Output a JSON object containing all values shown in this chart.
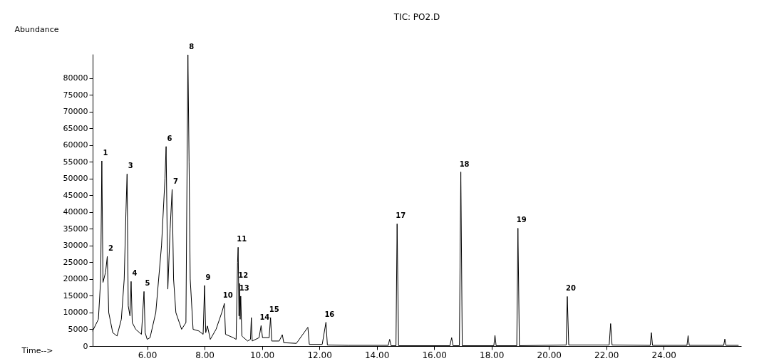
{
  "chart_data": {
    "type": "line",
    "title": "TIC: PO2.D",
    "xlabel": "Time-->",
    "ylabel": "Abundance",
    "xlim": [
      4.1,
      26.7
    ],
    "ylim": [
      0,
      87200
    ],
    "xticks": [
      {
        "value": 6,
        "label": "6.00"
      },
      {
        "value": 8,
        "label": "8.00"
      },
      {
        "value": 10,
        "label": "10.00"
      },
      {
        "value": 12,
        "label": "12.00"
      },
      {
        "value": 14,
        "label": "14.00"
      },
      {
        "value": 16,
        "label": "16.00"
      },
      {
        "value": 18,
        "label": "18.00"
      },
      {
        "value": 20,
        "label": "20.00"
      },
      {
        "value": 22,
        "label": "22.00"
      },
      {
        "value": 24,
        "label": "24.00"
      }
    ],
    "yticks": [
      0,
      5000,
      10000,
      15000,
      20000,
      25000,
      30000,
      35000,
      40000,
      45000,
      50000,
      55000,
      60000,
      65000,
      70000,
      75000,
      80000
    ],
    "grid": false,
    "marker": "none",
    "line_style": "solid",
    "series": [
      {
        "color": "#000000",
        "x": [
          4.1,
          4.3,
          4.38,
          4.42,
          4.46,
          4.55,
          4.61,
          4.66,
          4.8,
          4.95,
          5.1,
          5.2,
          5.26,
          5.3,
          5.34,
          5.4,
          5.44,
          5.48,
          5.6,
          5.8,
          5.89,
          5.93,
          6.0,
          6.1,
          6.3,
          6.5,
          6.62,
          6.66,
          6.72,
          6.8,
          6.87,
          6.92,
          7.0,
          7.2,
          7.35,
          7.42,
          7.46,
          7.5,
          7.6,
          7.8,
          7.95,
          8.0,
          8.04,
          8.1,
          8.2,
          8.4,
          8.6,
          8.69,
          8.73,
          9.0,
          9.1,
          9.15,
          9.17,
          9.2,
          9.22,
          9.24,
          9.26,
          9.3,
          9.5,
          9.6,
          9.63,
          9.66,
          9.9,
          9.97,
          10.02,
          10.25,
          10.3,
          10.34,
          10.6,
          10.71,
          10.76,
          11.2,
          11.6,
          11.65,
          12.1,
          12.23,
          12.28,
          13.0,
          14.4,
          14.45,
          14.5,
          14.67,
          14.71,
          14.76,
          16.55,
          16.61,
          16.66,
          16.88,
          16.93,
          16.98,
          18.08,
          18.12,
          18.16,
          18.88,
          18.92,
          18.97,
          20.6,
          20.64,
          20.69,
          22.1,
          22.15,
          22.2,
          23.53,
          23.57,
          23.61,
          24.81,
          24.85,
          24.89,
          26.09,
          26.13,
          26.17,
          26.6
        ],
        "values": [
          4500,
          8000,
          20000,
          55300,
          19000,
          22000,
          26800,
          10000,
          4000,
          3000,
          8000,
          20000,
          40000,
          51400,
          12000,
          9000,
          19300,
          7000,
          5000,
          3500,
          16300,
          4000,
          2000,
          2500,
          10000,
          30000,
          50000,
          59600,
          17000,
          35000,
          46800,
          20000,
          10000,
          5000,
          7000,
          87000,
          55000,
          20000,
          5000,
          4500,
          3500,
          18100,
          4000,
          6000,
          2000,
          5000,
          10000,
          12700,
          3500,
          2500,
          2000,
          25000,
          29500,
          9000,
          18700,
          8000,
          14900,
          3000,
          1500,
          2000,
          8500,
          1500,
          2500,
          6100,
          2500,
          2500,
          8500,
          1500,
          1500,
          3400,
          1000,
          800,
          5600,
          500,
          500,
          7100,
          300,
          200,
          200,
          2000,
          100,
          100,
          36500,
          100,
          100,
          2500,
          100,
          100,
          52000,
          100,
          100,
          3200,
          100,
          100,
          35200,
          100,
          300,
          14800,
          300,
          300,
          6700,
          300,
          200,
          4000,
          200,
          200,
          3100,
          200,
          200,
          2100,
          200,
          200
        ]
      }
    ],
    "annotations": [
      {
        "text": "1",
        "x": 4.42,
        "y": 55300
      },
      {
        "text": "2",
        "x": 4.61,
        "y": 26800
      },
      {
        "text": "3",
        "x": 5.3,
        "y": 51400
      },
      {
        "text": "4",
        "x": 5.44,
        "y": 19300
      },
      {
        "text": "5",
        "x": 5.89,
        "y": 16300
      },
      {
        "text": "6",
        "x": 6.66,
        "y": 59600
      },
      {
        "text": "7",
        "x": 6.87,
        "y": 46800
      },
      {
        "text": "8",
        "x": 7.42,
        "y": 87000
      },
      {
        "text": "9",
        "x": 8.0,
        "y": 18100
      },
      {
        "text": "10",
        "x": 8.69,
        "y": 12700
      },
      {
        "text": "11",
        "x": 9.17,
        "y": 29500
      },
      {
        "text": "12",
        "x": 9.22,
        "y": 18700
      },
      {
        "text": "13",
        "x": 9.26,
        "y": 14900
      },
      {
        "text": "14",
        "x": 9.97,
        "y": 6100
      },
      {
        "text": "15",
        "x": 10.3,
        "y": 8500
      },
      {
        "text": "16",
        "x": 12.23,
        "y": 7100
      },
      {
        "text": "17",
        "x": 14.71,
        "y": 36500
      },
      {
        "text": "18",
        "x": 16.93,
        "y": 52000
      },
      {
        "text": "19",
        "x": 18.92,
        "y": 35200
      },
      {
        "text": "20",
        "x": 20.64,
        "y": 14800
      }
    ]
  }
}
